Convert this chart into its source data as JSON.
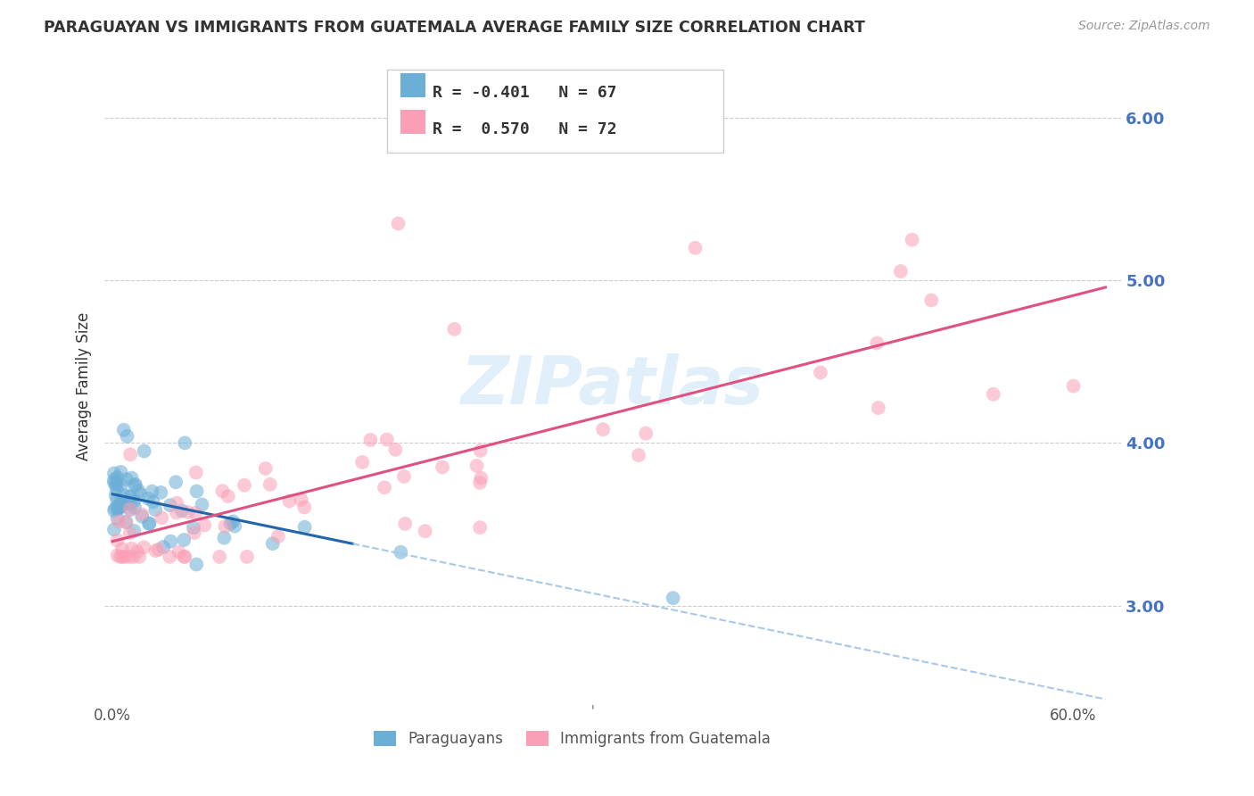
{
  "title": "PARAGUAYAN VS IMMIGRANTS FROM GUATEMALA AVERAGE FAMILY SIZE CORRELATION CHART",
  "source": "Source: ZipAtlas.com",
  "ylabel": "Average Family Size",
  "watermark": "ZIPatlas",
  "ylim": [
    2.4,
    6.3
  ],
  "xlim": [
    -0.005,
    0.63
  ],
  "yticks": [
    3.0,
    4.0,
    5.0,
    6.0
  ],
  "xticks": [
    0.0,
    0.1,
    0.2,
    0.3,
    0.4,
    0.5,
    0.6
  ],
  "xtick_labels": [
    "0.0%",
    "",
    "",
    "",
    "",
    "",
    "60.0%"
  ],
  "color_blue": "#6baed6",
  "color_pink": "#fa9fb5",
  "trendline_blue_color": "#2166ac",
  "trendline_pink_color": "#e05080",
  "trendline_blue_dashed_color": "#a8c8e8",
  "r1": -0.401,
  "n1": 67,
  "r2": 0.57,
  "n2": 72
}
